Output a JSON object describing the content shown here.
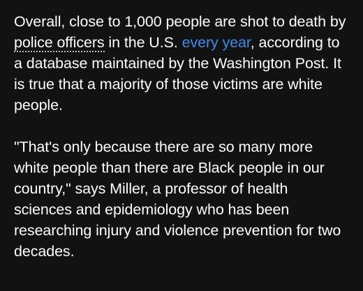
{
  "article": {
    "paragraph_1": {
      "text_before_link": "Overall, close to 1,000 people are shot to death by ",
      "glossary_link": "police officers",
      "text_middle": " in the U.S. ",
      "source_link": "every year",
      "text_after_link": ", according to a database maintained by the Washington Post. It is true that a majority of those victims are white people."
    },
    "paragraph_2": {
      "text": "\"That's only because there are so many more white people than there are Black people in our country,\" says Miller, a professor of health sciences and epidemiology who has been researching injury and violence prevention for two decades."
    }
  },
  "colors": {
    "background": "#121212",
    "text": "#ffffff",
    "link_accent": "#3d8ce8",
    "dotted_underline": "#bdbdbd"
  }
}
